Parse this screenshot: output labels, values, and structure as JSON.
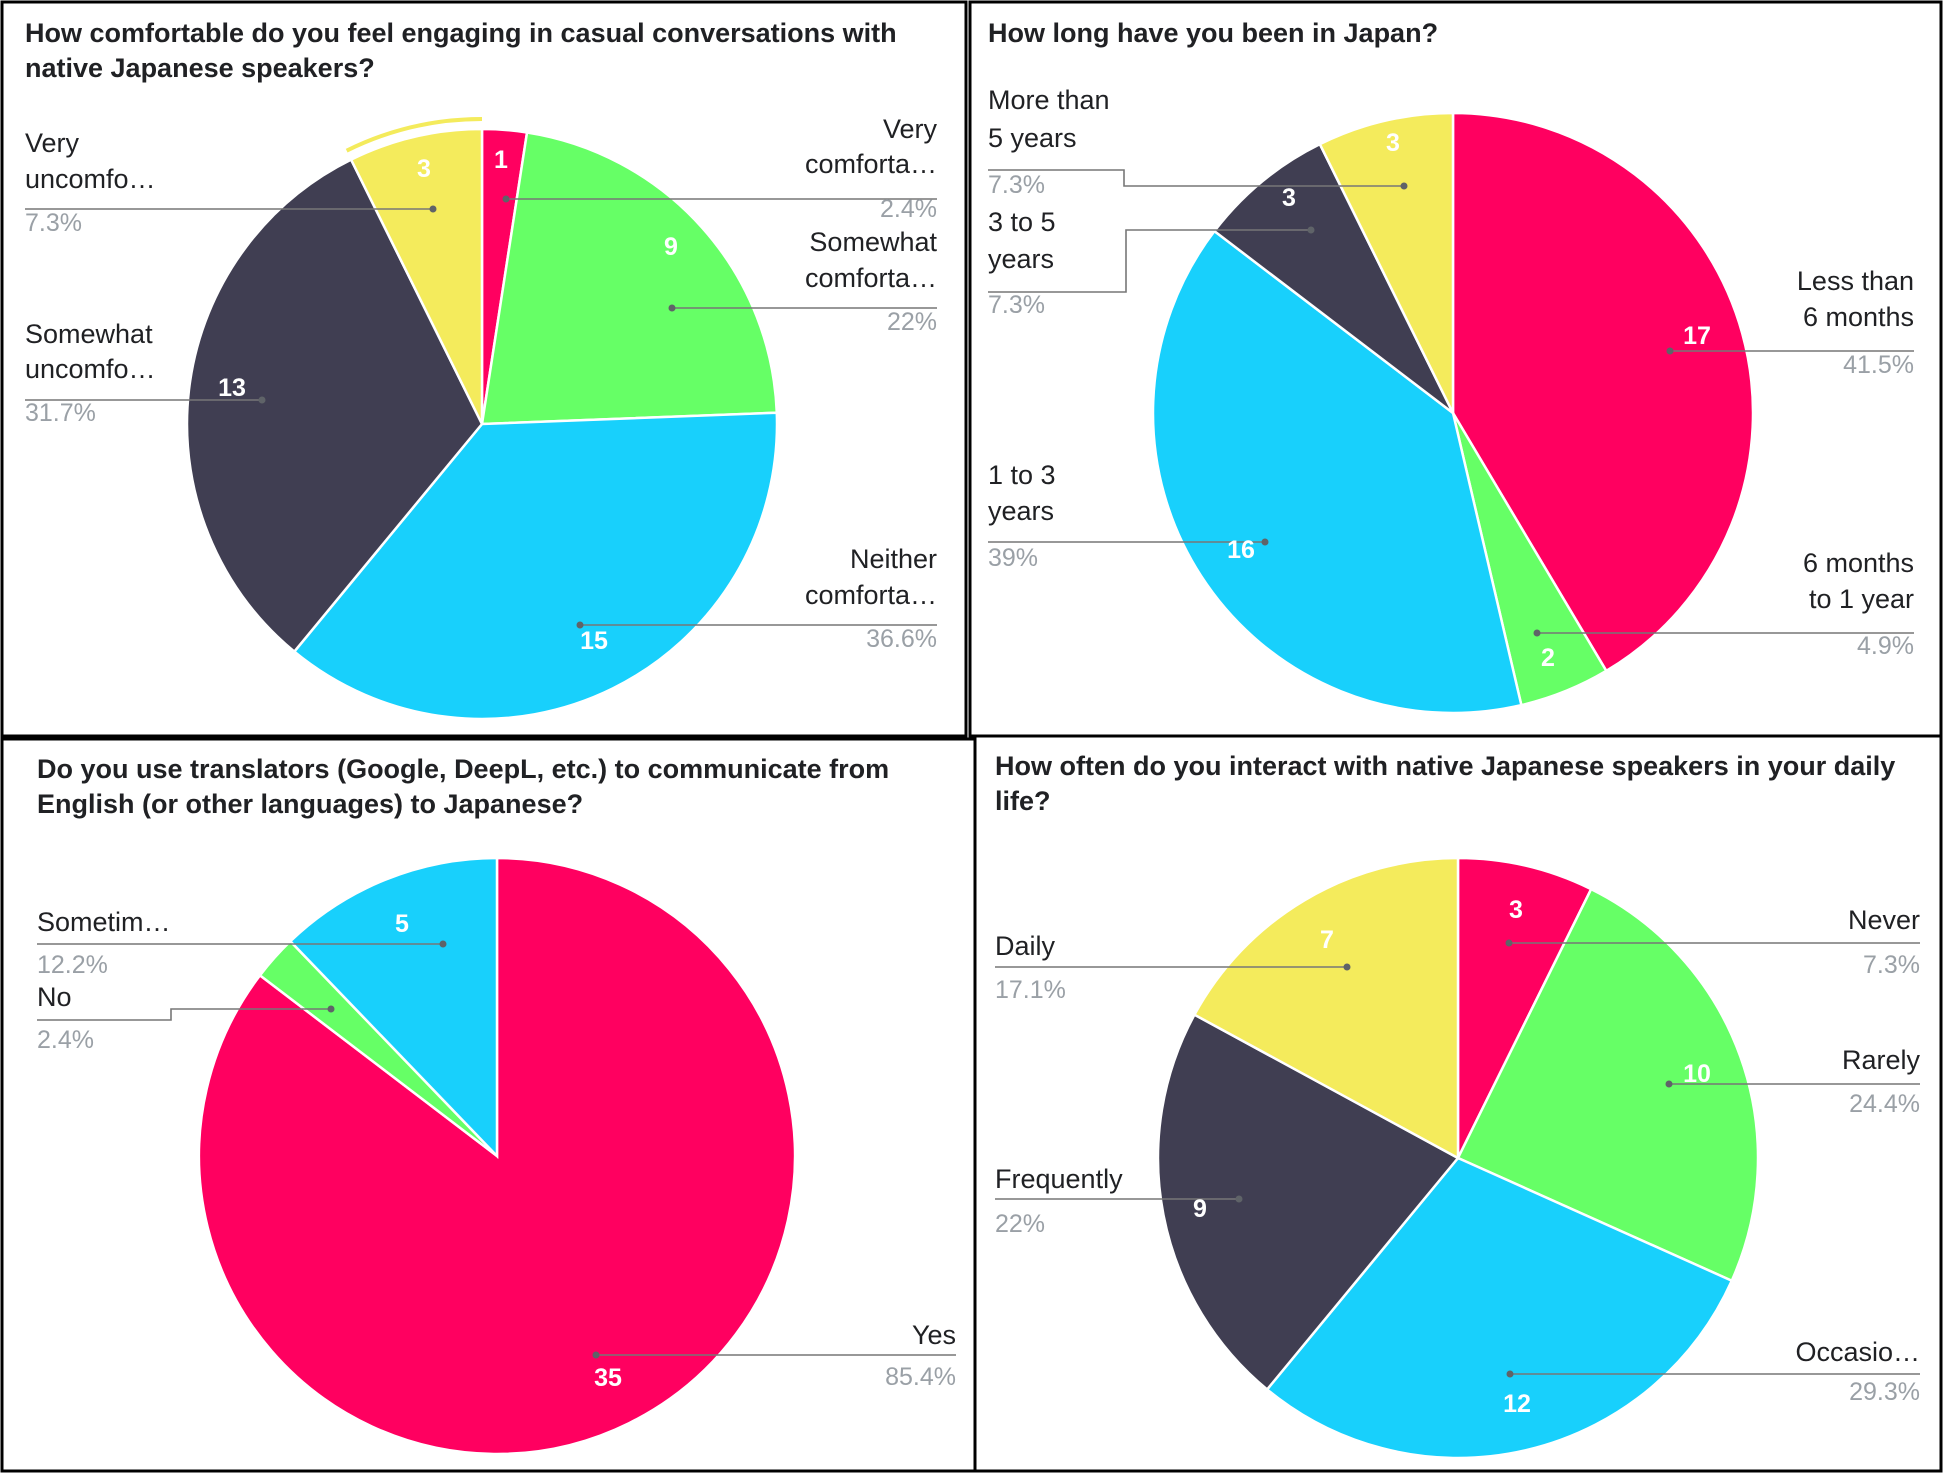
{
  "colors": {
    "pink": "#ff0060",
    "green": "#66ff66",
    "cyan": "#18d0fc",
    "dark": "#403e52",
    "yellow": "#f4eb5c",
    "title": "#202124",
    "percent": "#9aa0a6"
  },
  "chart_data": [
    {
      "type": "pie",
      "title_lines": [
        "How comfortable do you feel engaging in casual conversations with",
        "native Japanese speakers?"
      ],
      "slices": [
        {
          "name": "Very comfortable",
          "label_lines": [
            "Very",
            "comforta…"
          ],
          "percent_text": "2.4%",
          "value": 1,
          "color": "pink"
        },
        {
          "name": "Somewhat comfortable",
          "label_lines": [
            "Somewhat",
            "comforta…"
          ],
          "percent_text": "22%",
          "value": 9,
          "color": "green"
        },
        {
          "name": "Neither comfortable",
          "label_lines": [
            "Neither",
            "comforta…"
          ],
          "percent_text": "36.6%",
          "value": 15,
          "color": "cyan"
        },
        {
          "name": "Somewhat uncomfortable",
          "label_lines": [
            "Somewhat",
            "uncomfo…"
          ],
          "percent_text": "31.7%",
          "value": 13,
          "color": "dark"
        },
        {
          "name": "Very uncomfortable",
          "label_lines": [
            "Very",
            "uncomfo…"
          ],
          "percent_text": "7.3%",
          "value": 3,
          "color": "yellow"
        }
      ]
    },
    {
      "type": "pie",
      "title_lines": [
        "How long have you been in Japan?"
      ],
      "slices": [
        {
          "name": "Less than 6 months",
          "label_lines": [
            "Less than",
            "6 months"
          ],
          "percent_text": "41.5%",
          "value": 17,
          "color": "pink"
        },
        {
          "name": "6 months to 1 year",
          "label_lines": [
            "6 months",
            "to 1 year"
          ],
          "percent_text": "4.9%",
          "value": 2,
          "color": "green"
        },
        {
          "name": "1 to 3 years",
          "label_lines": [
            "1 to 3",
            "years"
          ],
          "percent_text": "39%",
          "value": 16,
          "color": "cyan"
        },
        {
          "name": "3 to 5 years",
          "label_lines": [
            "3 to 5",
            "years"
          ],
          "percent_text": "7.3%",
          "value": 3,
          "color": "dark"
        },
        {
          "name": "More than 5 years",
          "label_lines": [
            "More than",
            "5 years"
          ],
          "percent_text": "7.3%",
          "value": 3,
          "color": "yellow"
        }
      ]
    },
    {
      "type": "pie",
      "title_lines": [
        "Do you use translators (Google, DeepL, etc.) to communicate from",
        "English (or other languages) to Japanese?"
      ],
      "slices": [
        {
          "name": "Yes",
          "label_lines": [
            "Yes"
          ],
          "percent_text": "85.4%",
          "value": 35,
          "color": "pink"
        },
        {
          "name": "No",
          "label_lines": [
            "No"
          ],
          "percent_text": "2.4%",
          "value": 1,
          "color": "green"
        },
        {
          "name": "Sometimes",
          "label_lines": [
            "Sometim…"
          ],
          "percent_text": "12.2%",
          "value": 5,
          "color": "cyan"
        }
      ]
    },
    {
      "type": "pie",
      "title_lines": [
        "How often do you interact with native Japanese speakers in your daily",
        "life?"
      ],
      "slices": [
        {
          "name": "Never",
          "label_lines": [
            "Never"
          ],
          "percent_text": "7.3%",
          "value": 3,
          "color": "pink"
        },
        {
          "name": "Rarely",
          "label_lines": [
            "Rarely"
          ],
          "percent_text": "24.4%",
          "value": 10,
          "color": "green"
        },
        {
          "name": "Occasionally",
          "label_lines": [
            "Occasio…"
          ],
          "percent_text": "29.3%",
          "value": 12,
          "color": "cyan"
        },
        {
          "name": "Frequently",
          "label_lines": [
            "Frequently"
          ],
          "percent_text": "22%",
          "value": 9,
          "color": "dark"
        },
        {
          "name": "Daily",
          "label_lines": [
            "Daily"
          ],
          "percent_text": "17.1%",
          "value": 7,
          "color": "yellow"
        }
      ]
    }
  ]
}
